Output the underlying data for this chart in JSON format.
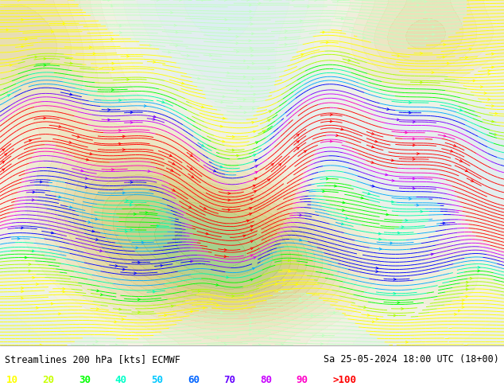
{
  "title_left": "Streamlines 200 hPa [kts] ECMWF",
  "title_right": "Sa 25-05-2024 18:00 UTC (18+00)",
  "legend_values": [
    "10",
    "20",
    "30",
    "40",
    "50",
    "60",
    "70",
    "80",
    "90",
    ">100"
  ],
  "legend_colors": [
    "#ffff00",
    "#c8ff00",
    "#00ff00",
    "#00ffc8",
    "#00c8ff",
    "#0064ff",
    "#6400ff",
    "#c800ff",
    "#ff00c8",
    "#ff0000"
  ],
  "background_color": "#ffffff",
  "text_color": "#000000",
  "fig_width": 6.34,
  "fig_height": 4.9,
  "dpi": 100,
  "map_bg_color": "#f5f5ee",
  "land_color": "#e8dfc0",
  "sea_color": "#d8eef5"
}
